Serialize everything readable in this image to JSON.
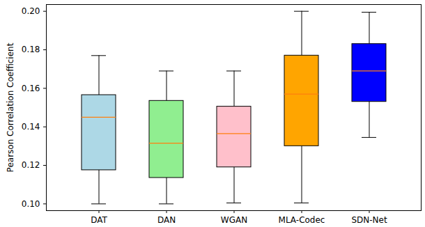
{
  "chart_data": {
    "type": "box",
    "y_label": "Pearson Correlation Coefficient",
    "categories": [
      "DAT",
      "DAN",
      "WGAN",
      "MLA-Codec",
      "SDN-Net"
    ],
    "colors": [
      "lightblue",
      "lightgreen",
      "pink",
      "orange",
      "blue"
    ],
    "min": [
      0.1,
      0.1,
      0.1005,
      0.1005,
      0.1345
    ],
    "q1": [
      0.1175,
      0.1135,
      0.119,
      0.13,
      0.153
    ],
    "median": [
      0.145,
      0.1315,
      0.1365,
      0.157,
      0.169
    ],
    "q3": [
      0.1565,
      0.1535,
      0.1505,
      0.177,
      0.183
    ],
    "max": [
      0.177,
      0.169,
      0.169,
      0.2,
      0.1995
    ],
    "ylim": [
      0.0965,
      0.2035
    ],
    "yticks": [
      {
        "value": 0.1,
        "label": "0.10"
      },
      {
        "value": 0.12,
        "label": "0.12"
      },
      {
        "value": 0.14,
        "label": "0.14"
      },
      {
        "value": 0.16,
        "label": "0.16"
      },
      {
        "value": 0.18,
        "label": "0.18"
      },
      {
        "value": 0.2,
        "label": "0.20"
      }
    ]
  }
}
